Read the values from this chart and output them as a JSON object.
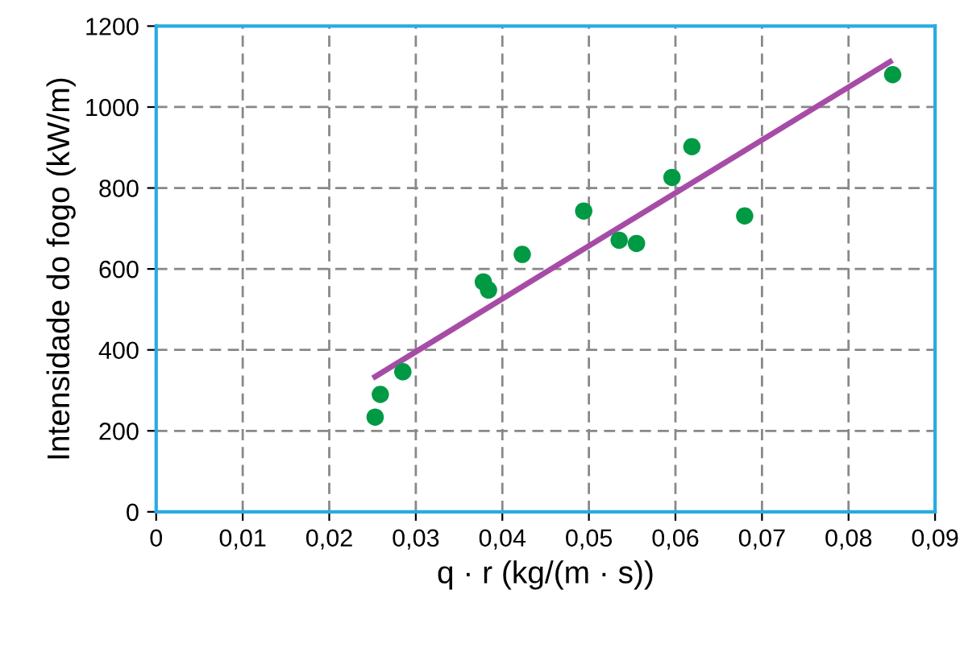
{
  "chart_data": {
    "type": "scatter",
    "xlabel": "q · r (kg/(m · s))",
    "ylabel": "Intensidade do fogo (kW/m)",
    "xlim": [
      0,
      0.09
    ],
    "xticks": [
      {
        "value": 0,
        "label": "0"
      },
      {
        "value": 0.01,
        "label": "0,01"
      },
      {
        "value": 0.02,
        "label": "0,02"
      },
      {
        "value": 0.03,
        "label": "0,03"
      },
      {
        "value": 0.04,
        "label": "0,04"
      },
      {
        "value": 0.05,
        "label": "0,05"
      },
      {
        "value": 0.06,
        "label": "0,06"
      },
      {
        "value": 0.07,
        "label": "0,07"
      },
      {
        "value": 0.08,
        "label": "0,08"
      },
      {
        "value": 0.09,
        "label": "0,09"
      }
    ],
    "ylim": [
      0,
      1200
    ],
    "yticks": [
      0,
      200,
      400,
      600,
      800,
      1000,
      1200
    ],
    "grid": true,
    "series": [
      {
        "marker": "circle",
        "color": "#009a44",
        "x": [
          0.0253,
          0.0259,
          0.0285,
          0.0378,
          0.0384,
          0.0423,
          0.0494,
          0.0535,
          0.0555,
          0.0596,
          0.0619,
          0.068,
          0.0851
        ],
        "values": [
          234,
          290,
          346,
          568,
          548,
          636,
          743,
          671,
          663,
          826,
          902,
          731,
          1080
        ]
      },
      {
        "type": "line",
        "marker": "none",
        "color": "#a64ca6",
        "x": [
          0.0253,
          0.0848
        ],
        "values": [
          334,
          1112
        ]
      }
    ]
  }
}
